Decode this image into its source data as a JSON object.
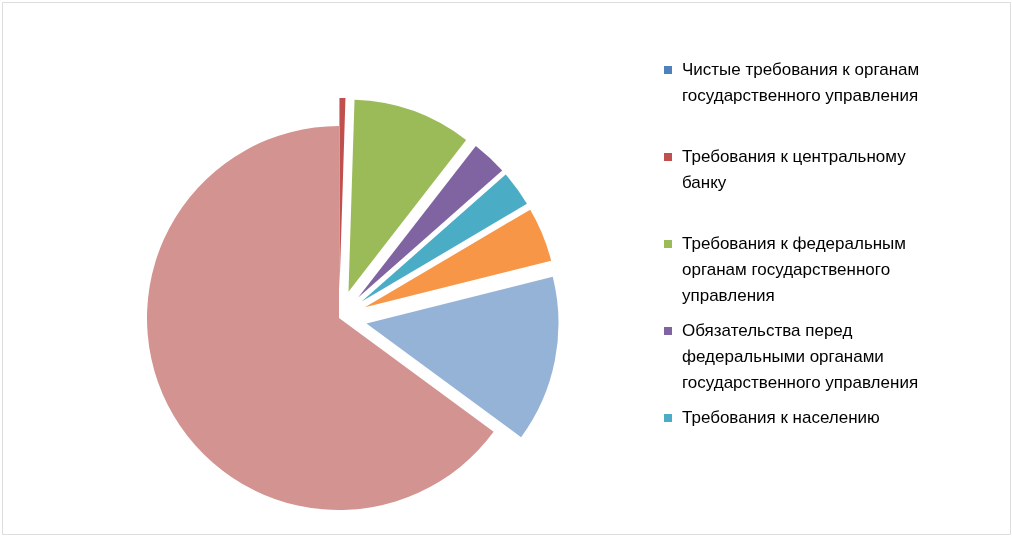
{
  "chart_data": {
    "type": "pie",
    "categories": [
      "Чистые требования к органам государственного управления",
      "Требования к центральному банку",
      "Требования к федеральным органам государственного управления",
      "Обязательства перед федеральными органами государственного управления",
      "Требования к населению",
      null,
      null,
      null
    ],
    "values": [
      0,
      0.5,
      10,
      3,
      3,
      4.6,
      14,
      64.9
    ],
    "colors": [
      "#4f81bd",
      "#c0504d",
      "#9bbb59",
      "#8064a2",
      "#4bacc6",
      "#f79646",
      "#95b3d7",
      "#d39391"
    ],
    "legend": "right"
  }
}
